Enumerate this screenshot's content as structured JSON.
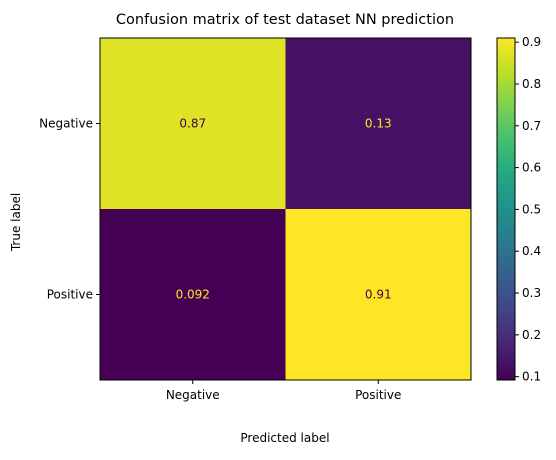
{
  "chart_data": {
    "type": "heatmap",
    "title": "Confusion matrix of test dataset NN prediction",
    "xlabel": "Predicted label",
    "ylabel": "True label",
    "x_categories": [
      "Negative",
      "Positive"
    ],
    "y_categories": [
      "Negative",
      "Positive"
    ],
    "values": [
      [
        0.87,
        0.13
      ],
      [
        0.092,
        0.91
      ]
    ],
    "cell_labels": [
      [
        "0.87",
        "0.13"
      ],
      [
        "0.092",
        "0.91"
      ]
    ],
    "colormap": "viridis",
    "color_range": [
      0.092,
      0.91
    ],
    "colorbar": {
      "ticks": [
        0.1,
        0.2,
        0.3,
        0.4,
        0.5,
        0.6,
        0.7,
        0.8,
        0.9
      ],
      "tick_labels": [
        "0.1",
        "0.2",
        "0.3",
        "0.4",
        "0.5",
        "0.6",
        "0.7",
        "0.8",
        "0.9"
      ]
    },
    "label_colors": {
      "on_dark": "#fde725",
      "on_light": "#440154"
    }
  }
}
